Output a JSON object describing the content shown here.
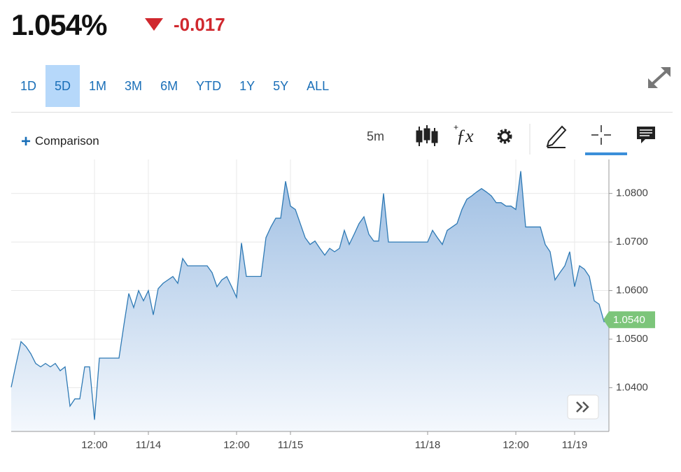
{
  "header": {
    "price": "1.054%",
    "change": "-0.017"
  },
  "ranges": [
    "1D",
    "5D",
    "1M",
    "3M",
    "6M",
    "YTD",
    "1Y",
    "5Y",
    "ALL"
  ],
  "selected_range": "5D",
  "toolbar": {
    "comparison": "Comparison",
    "interval": "5m"
  },
  "chart_data": {
    "type": "area",
    "categories": [
      null,
      null,
      null,
      null,
      null,
      null,
      null,
      null,
      null,
      null,
      null,
      null,
      null,
      null,
      null,
      null,
      null,
      "12:00",
      null,
      null,
      null,
      null,
      null,
      null,
      null,
      null,
      null,
      null,
      "11/14",
      null,
      null,
      null,
      null,
      null,
      null,
      null,
      null,
      null,
      null,
      null,
      null,
      null,
      null,
      null,
      null,
      null,
      "12:00",
      null,
      null,
      null,
      null,
      null,
      null,
      null,
      null,
      null,
      null,
      "11/15",
      null,
      null,
      null,
      null,
      null,
      null,
      null,
      null,
      null,
      null,
      null,
      null,
      null,
      null,
      null,
      null,
      null,
      null,
      null,
      null,
      null,
      null,
      null,
      null,
      null,
      null,
      null,
      "11/18",
      null,
      null,
      null,
      null,
      null,
      null,
      null,
      null,
      null,
      null,
      null,
      null,
      null,
      null,
      null,
      null,
      null,
      "12:00",
      null,
      null,
      null,
      null,
      null,
      null,
      null,
      null,
      null,
      null,
      null,
      "11/19",
      null,
      null,
      null,
      null,
      null,
      null,
      null
    ],
    "values": [
      1.0401,
      1.0449,
      1.0495,
      1.0485,
      1.047,
      1.045,
      1.0443,
      1.045,
      1.0443,
      1.045,
      1.0435,
      1.0443,
      1.0362,
      1.0377,
      1.0377,
      1.0443,
      1.0443,
      1.0334,
      1.0461,
      1.0461,
      1.0461,
      1.0461,
      1.0461,
      1.0529,
      1.0594,
      1.0565,
      1.06,
      1.0579,
      1.06,
      1.055,
      1.0604,
      1.0615,
      1.0622,
      1.0629,
      1.0615,
      1.0666,
      1.0651,
      1.0651,
      1.0651,
      1.0651,
      1.0651,
      1.0637,
      1.0608,
      1.0622,
      1.0629,
      1.0608,
      1.0586,
      1.0698,
      1.0629,
      1.0629,
      1.0629,
      1.0629,
      1.0709,
      1.0731,
      1.0749,
      1.0749,
      1.0825,
      1.0774,
      1.0767,
      1.0738,
      1.0709,
      1.0695,
      1.0702,
      1.0687,
      1.0673,
      1.0687,
      1.068,
      1.0687,
      1.0724,
      1.0695,
      1.0716,
      1.0738,
      1.0752,
      1.0716,
      1.0702,
      1.0702,
      1.08,
      1.07,
      1.07,
      1.07,
      1.07,
      1.07,
      1.07,
      1.07,
      1.07,
      1.07,
      1.0724,
      1.0709,
      1.0695,
      1.0724,
      1.0731,
      1.0738,
      1.0767,
      1.0788,
      1.0795,
      1.0803,
      1.081,
      1.0803,
      1.0795,
      1.0781,
      1.0781,
      1.0774,
      1.0774,
      1.0767,
      1.0846,
      1.0731,
      1.0731,
      1.0731,
      1.0731,
      1.0695,
      1.068,
      1.0622,
      1.0637,
      1.0651,
      1.068,
      1.0608,
      1.0651,
      1.0644,
      1.0629,
      1.0579,
      1.0572,
      1.0536,
      1.054
    ],
    "color": "#2f7ab5",
    "last_price_label": "1.0540",
    "ylim": [
      1.031,
      1.087
    ],
    "yticks": [
      {
        "value": 1.04,
        "label": "1.0400"
      },
      {
        "value": 1.05,
        "label": "1.0500"
      },
      {
        "value": 1.06,
        "label": "1.0600"
      },
      {
        "value": 1.07,
        "label": "1.0700"
      },
      {
        "value": 1.08,
        "label": "1.0800"
      }
    ],
    "grid": true
  }
}
